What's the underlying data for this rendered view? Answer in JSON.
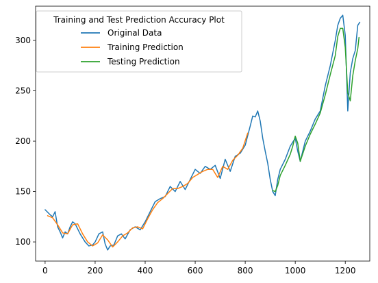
{
  "chart_data": {
    "type": "line",
    "title": "",
    "xlabel": "",
    "ylabel": "",
    "xlim": [
      -38,
      1298
    ],
    "ylim": [
      81,
      334
    ],
    "xticks": [
      0,
      200,
      400,
      600,
      800,
      1000,
      1200
    ],
    "yticks": [
      100,
      150,
      200,
      250,
      300
    ],
    "grid": false,
    "legend": {
      "title": "Training and Test Prediction Accuracy Plot",
      "placement": "top-left"
    },
    "series": [
      {
        "name": "Original Data",
        "color": "#1f77b4",
        "x": [
          0,
          20,
          30,
          40,
          50,
          60,
          70,
          80,
          90,
          100,
          110,
          120,
          140,
          160,
          175,
          190,
          200,
          215,
          230,
          240,
          250,
          260,
          275,
          290,
          305,
          320,
          340,
          360,
          380,
          400,
          420,
          440,
          460,
          480,
          500,
          520,
          540,
          560,
          580,
          600,
          620,
          640,
          660,
          680,
          700,
          720,
          740,
          760,
          780,
          800,
          820,
          830,
          840,
          850,
          860,
          870,
          880,
          890,
          900,
          910,
          920,
          930,
          940,
          960,
          980,
          1000,
          1010,
          1020,
          1040,
          1060,
          1080,
          1100,
          1120,
          1140,
          1160,
          1170,
          1180,
          1190,
          1200,
          1210,
          1220,
          1230,
          1240,
          1250,
          1258
        ],
        "y": [
          132,
          127,
          125,
          130,
          115,
          110,
          104,
          110,
          108,
          115,
          120,
          118,
          108,
          100,
          96,
          97,
          100,
          108,
          110,
          98,
          92,
          96,
          97,
          106,
          108,
          103,
          112,
          115,
          112,
          120,
          130,
          140,
          143,
          145,
          155,
          150,
          160,
          152,
          162,
          172,
          168,
          175,
          172,
          176,
          163,
          182,
          170,
          185,
          188,
          196,
          215,
          225,
          224,
          230,
          220,
          203,
          190,
          178,
          162,
          150,
          146,
          162,
          172,
          182,
          195,
          203,
          190,
          180,
          200,
          210,
          222,
          230,
          255,
          275,
          300,
          315,
          322,
          325,
          305,
          230,
          268,
          282,
          290,
          315,
          318
        ]
      },
      {
        "name": "Training Prediction",
        "color": "#ff7f0e",
        "x": [
          10,
          30,
          50,
          70,
          90,
          110,
          130,
          150,
          170,
          190,
          210,
          230,
          250,
          270,
          290,
          310,
          330,
          350,
          370,
          390,
          410,
          430,
          450,
          470,
          490,
          510,
          530,
          550,
          570,
          590,
          610,
          630,
          650,
          670,
          690,
          710,
          730,
          750,
          770,
          790,
          810
        ],
        "y": [
          126,
          124,
          117,
          109,
          108,
          117,
          118,
          108,
          100,
          96,
          99,
          107,
          102,
          95,
          100,
          106,
          109,
          114,
          115,
          113,
          123,
          132,
          139,
          143,
          148,
          153,
          153,
          155,
          158,
          164,
          167,
          170,
          172,
          172,
          164,
          175,
          172,
          181,
          186,
          193,
          208
        ]
      },
      {
        "name": "Testing Prediction",
        "color": "#2ca02c",
        "x": [
          910,
          920,
          930,
          940,
          960,
          980,
          990,
          1000,
          1010,
          1020,
          1040,
          1060,
          1080,
          1100,
          1120,
          1140,
          1160,
          1170,
          1180,
          1190,
          1200,
          1210,
          1220,
          1230,
          1240,
          1250,
          1255
        ],
        "y": [
          151,
          150,
          156,
          166,
          176,
          187,
          195,
          205,
          198,
          180,
          195,
          207,
          217,
          228,
          246,
          266,
          285,
          304,
          312,
          312,
          293,
          248,
          240,
          265,
          280,
          292,
          303
        ]
      }
    ]
  }
}
